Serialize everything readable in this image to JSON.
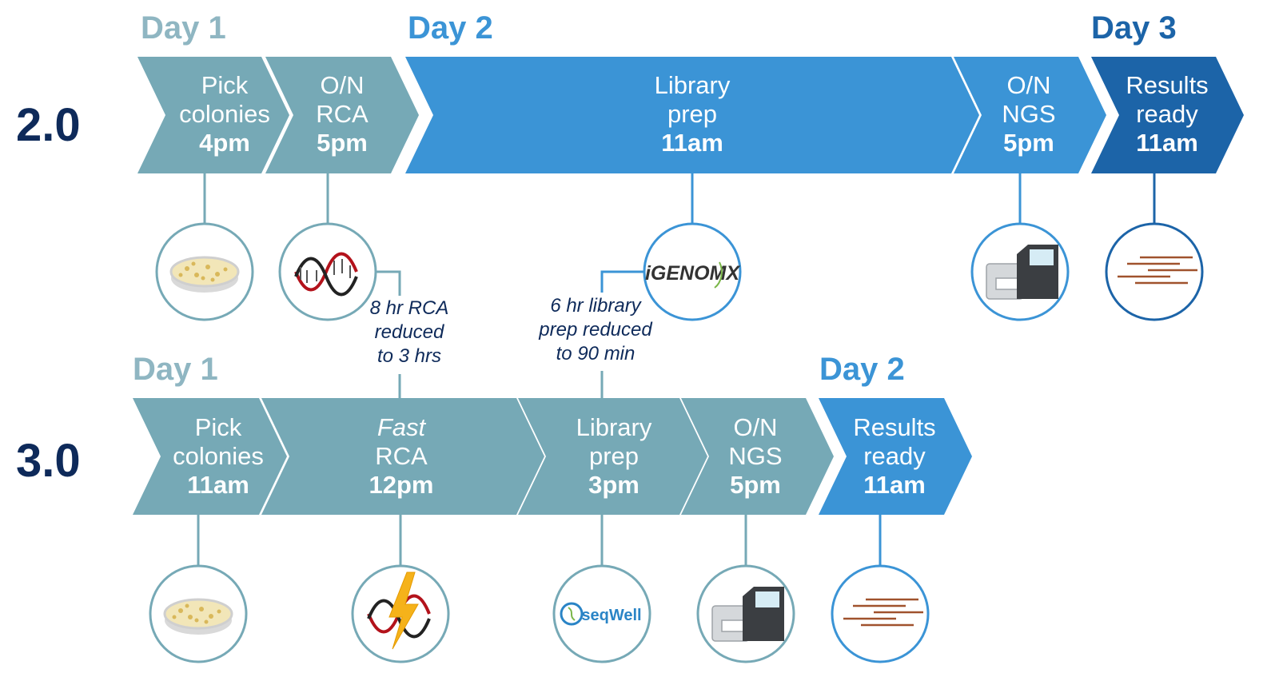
{
  "colors": {
    "teal": "#76a9b6",
    "blue": "#3b94d6",
    "navy": "#1c64a8",
    "version_text": "#0e2a5a",
    "day_teal": "#8fb6c2",
    "day_blue": "#3b94d6",
    "day_navy": "#1c64a8"
  },
  "workflow_2_0": {
    "version": "2.0",
    "days": [
      "Day 1",
      "Day 2",
      "Day 3"
    ],
    "steps": [
      {
        "line1": "Pick",
        "line2": "colonies",
        "time": "4pm",
        "icon": "petri-dish-icon"
      },
      {
        "line1": "O/N",
        "line2": "RCA",
        "time": "5pm",
        "icon": "dna-helix-icon"
      },
      {
        "line1": "Library",
        "line2": "prep",
        "time": "11am",
        "icon": "igenomx-logo-icon"
      },
      {
        "line1": "O/N",
        "line2": "NGS",
        "time": "5pm",
        "icon": "sequencer-instrument-icon"
      },
      {
        "line1": "Results",
        "line2": "ready",
        "time": "11am",
        "icon": "sequence-reads-icon"
      }
    ],
    "logo_text": "iGENOMX"
  },
  "workflow_3_0": {
    "version": "3.0",
    "days": [
      "Day 1",
      "Day 2"
    ],
    "steps": [
      {
        "line1": "Pick",
        "line2": "colonies",
        "time": "11am",
        "icon": "petri-dish-icon"
      },
      {
        "line1": "Fast",
        "line2": "RCA",
        "time": "12pm",
        "icon": "dna-lightning-icon"
      },
      {
        "line1": "Library",
        "line2": "prep",
        "time": "3pm",
        "icon": "seqwell-logo-icon"
      },
      {
        "line1": "O/N",
        "line2": "NGS",
        "time": "5pm",
        "icon": "sequencer-instrument-icon"
      },
      {
        "line1": "Results",
        "line2": "ready",
        "time": "11am",
        "icon": "sequence-reads-icon"
      }
    ],
    "logo_text": "seqWell"
  },
  "notes": {
    "rca": [
      "8 hr RCA",
      "reduced",
      "to 3 hrs"
    ],
    "library": [
      "6 hr library",
      "prep reduced",
      "to 90 min"
    ]
  }
}
